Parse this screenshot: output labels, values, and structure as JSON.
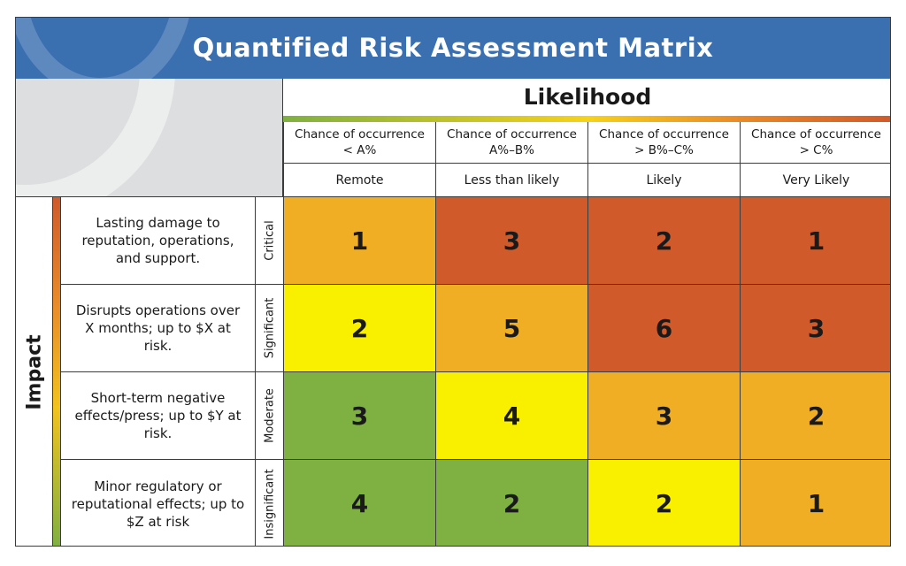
{
  "title": "Quantified Risk Assessment Matrix",
  "likelihood_heading": "Likelihood",
  "impact_heading": "Impact",
  "columns": [
    {
      "chance": "Chance of occurrence\n< A%",
      "label": "Remote"
    },
    {
      "chance": "Chance of occurrence\nA%–B%",
      "label": "Less than likely"
    },
    {
      "chance": "Chance of occurrence\n> B%–C%",
      "label": "Likely"
    },
    {
      "chance": "Chance of occurrence\n> C%",
      "label": "Very Likely"
    }
  ],
  "rows": [
    {
      "description": "Lasting damage to reputation, operations, and support.",
      "severity": "Critical",
      "cells": [
        {
          "value": "1",
          "color": "#f0ae25"
        },
        {
          "value": "3",
          "color": "#d15a2a"
        },
        {
          "value": "2",
          "color": "#d15a2a"
        },
        {
          "value": "1",
          "color": "#d15a2a"
        }
      ]
    },
    {
      "description": "Disrupts operations over X months; up to $X at risk.",
      "severity": "Significant",
      "cells": [
        {
          "value": "2",
          "color": "#f9f000"
        },
        {
          "value": "5",
          "color": "#f0ae25"
        },
        {
          "value": "6",
          "color": "#d15a2a"
        },
        {
          "value": "3",
          "color": "#d15a2a"
        }
      ]
    },
    {
      "description": "Short-term negative effects/press; up to $Y at risk.",
      "severity": "Moderate",
      "cells": [
        {
          "value": "3",
          "color": "#7fb042"
        },
        {
          "value": "4",
          "color": "#f9f000"
        },
        {
          "value": "3",
          "color": "#f0ae25"
        },
        {
          "value": "2",
          "color": "#f0ae25"
        }
      ]
    },
    {
      "description": "Minor regulatory or reputational effects; up to $Z at risk",
      "severity": "Insignificant",
      "cells": [
        {
          "value": "4",
          "color": "#7fb042"
        },
        {
          "value": "2",
          "color": "#7fb042"
        },
        {
          "value": "2",
          "color": "#f9f000"
        },
        {
          "value": "1",
          "color": "#f0ae25"
        }
      ]
    }
  ],
  "colors": {
    "banner": "#3a6fb0"
  }
}
